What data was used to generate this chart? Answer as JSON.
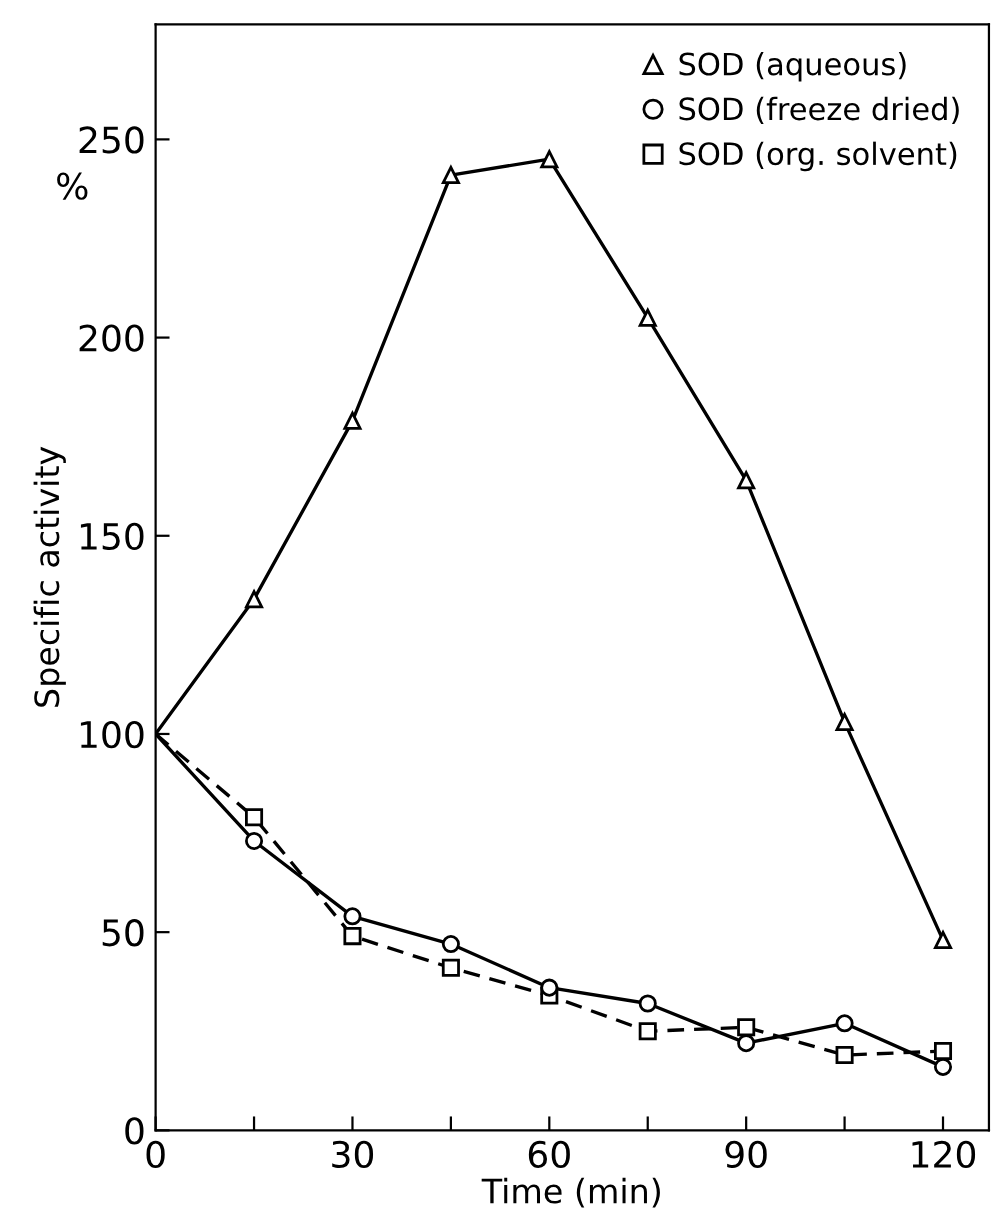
{
  "chart_data": {
    "type": "line",
    "xlabel": "Time (min)",
    "ylabel": "Specific activity",
    "annotations": [
      "%"
    ],
    "x": [
      0,
      15,
      30,
      45,
      60,
      75,
      90,
      105,
      120
    ],
    "series": [
      {
        "name": "SOD (aqueous)",
        "color": "#000000",
        "marker": "triangle",
        "line_style": "solid",
        "values": [
          100,
          134,
          179,
          241,
          245,
          205,
          164,
          103,
          48
        ]
      },
      {
        "name": "SOD (freeze dried)",
        "color": "#000000",
        "marker": "circle",
        "line_style": "solid",
        "values": [
          100,
          73,
          54,
          47,
          36,
          32,
          22,
          27,
          16
        ]
      },
      {
        "name": "SOD (org. solvent)",
        "color": "#000000",
        "marker": "square",
        "line_style": "dashed",
        "values": [
          100,
          79,
          49,
          41,
          34,
          25,
          26,
          19,
          20
        ]
      }
    ],
    "xlim": [
      0,
      127
    ],
    "ylim": [
      0,
      279
    ],
    "xticks": [
      0,
      {
        "value": 15,
        "label": null
      },
      30,
      {
        "value": 45,
        "label": null
      },
      60,
      {
        "value": 75,
        "label": null
      },
      90,
      {
        "value": 105,
        "label": null
      },
      120
    ],
    "yticks": [
      0,
      50,
      100,
      150,
      200,
      250
    ],
    "grid": false,
    "legend": "top right"
  }
}
